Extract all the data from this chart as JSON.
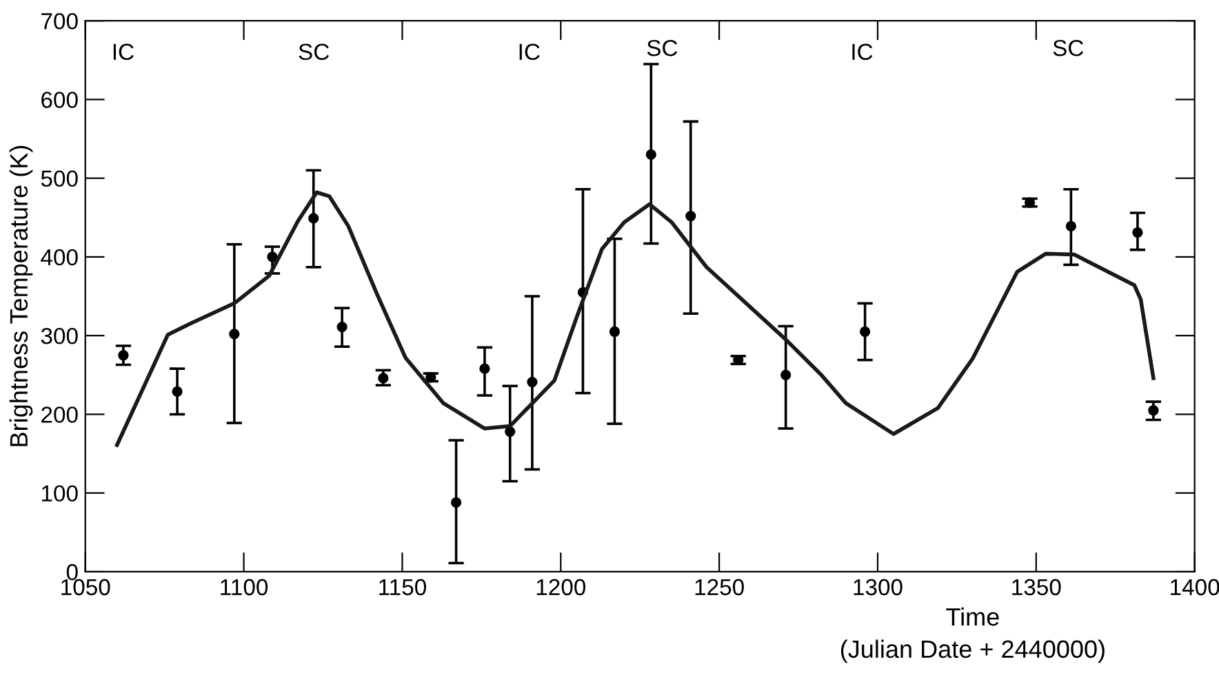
{
  "chart_data": {
    "type": "scatter",
    "xlabel": "Time\n(Julian Date + 2440000)",
    "ylabel": "Brightness Temperature (K)",
    "xlim": [
      1050,
      1400
    ],
    "xticks": [
      1050,
      1100,
      1150,
      1200,
      1250,
      1300,
      1350,
      1400
    ],
    "ylim": [
      0,
      700
    ],
    "yticks": [
      0,
      100,
      200,
      300,
      400,
      500,
      600,
      700
    ],
    "grid": false,
    "marker": "circle",
    "annotations": [
      "IC",
      "SC",
      "IC",
      "SC",
      "IC",
      "SC"
    ],
    "series": [
      {
        "color": "#000000",
        "x": [
          1062,
          1079,
          1097,
          1109,
          1122,
          1131,
          1144,
          1159,
          1167,
          1176,
          1184,
          1191,
          1207,
          1217,
          1228.5,
          1241,
          1256,
          1271,
          1296,
          1348,
          1361,
          1382,
          1387
        ],
        "values": [
          275,
          229,
          302,
          400,
          449,
          311,
          246,
          247,
          88,
          258,
          178,
          241,
          355,
          305,
          530,
          452,
          269,
          250,
          305,
          469,
          439,
          431,
          205
        ],
        "errors": [
          [
            263,
            287
          ],
          [
            200,
            258
          ],
          [
            189,
            416
          ],
          [
            379,
            413
          ],
          [
            387,
            510
          ],
          [
            286,
            335
          ],
          [
            237,
            256
          ],
          [
            242,
            252
          ],
          [
            11,
            167
          ],
          [
            224,
            285
          ],
          [
            115,
            236
          ],
          [
            130,
            350
          ],
          [
            227,
            486
          ],
          [
            188,
            423
          ],
          [
            417,
            645
          ],
          [
            328,
            572
          ],
          [
            264,
            274
          ],
          [
            182,
            312
          ],
          [
            269,
            341
          ],
          [
            464,
            474
          ],
          [
            390,
            486
          ],
          [
            409,
            456
          ],
          [
            193,
            216
          ]
        ]
      },
      {
        "type": "line",
        "color": "#1a1a1a",
        "marker": "none",
        "line_style": "solid",
        "x": [
          1060,
          1076,
          1083,
          1097,
          1108,
          1117,
          1123,
          1127,
          1133,
          1142,
          1151,
          1163,
          1176,
          1184,
          1198,
          1205,
          1213,
          1220,
          1228,
          1235,
          1246,
          1271,
          1282,
          1290,
          1305,
          1319,
          1330,
          1344,
          1353,
          1362,
          1381,
          1383,
          1387
        ],
        "values": [
          161,
          301,
          315,
          341,
          376,
          445,
          482,
          477,
          439,
          353,
          272,
          214,
          182,
          185,
          243,
          323,
          410,
          444,
          467,
          444,
          387,
          295,
          251,
          214,
          175,
          208,
          271,
          381,
          404,
          403,
          364,
          346,
          246
        ]
      }
    ]
  }
}
